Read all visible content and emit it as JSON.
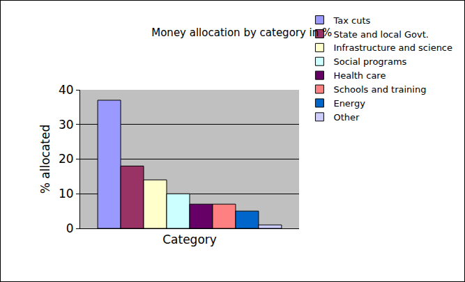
{
  "chart_data": {
    "type": "bar",
    "title": "Money allocation by category in %",
    "x_label": "Category",
    "y_label": "% allocated",
    "categories": [
      null
    ],
    "series": [
      {
        "name": "Tax cuts",
        "color": "#9999ff",
        "values": [
          37
        ]
      },
      {
        "name": "State and local Govt.",
        "color": "#993366",
        "values": [
          18
        ]
      },
      {
        "name": "Infrastructure and science",
        "color": "#ffffcc",
        "values": [
          14
        ]
      },
      {
        "name": "Social programs",
        "color": "#ccffff",
        "values": [
          10
        ]
      },
      {
        "name": "Health care",
        "color": "#660066",
        "values": [
          7
        ]
      },
      {
        "name": "Schools and training",
        "color": "#ff8080",
        "values": [
          7
        ]
      },
      {
        "name": "Energy",
        "color": "#0066cc",
        "values": [
          5
        ]
      },
      {
        "name": "Other",
        "color": "#ccccff",
        "values": [
          1
        ]
      }
    ],
    "ylim": [
      0,
      40
    ],
    "yticks": [
      0,
      10,
      20,
      30,
      40
    ],
    "grid": true,
    "legend": "right",
    "tick_labels": "y"
  }
}
